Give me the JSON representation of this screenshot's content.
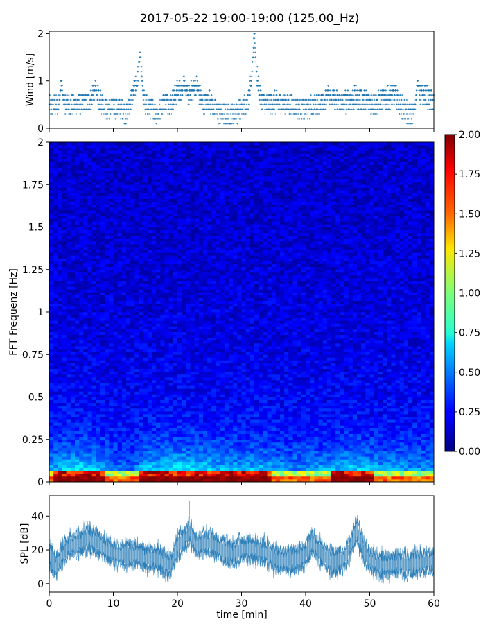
{
  "figure": {
    "title": "2017-05-22 19:00-19:00 (125.00_Hz)",
    "colors": {
      "series": "#1f77b4",
      "axis": "#000000",
      "background": "#ffffff",
      "lowfreq_band": "#a00000"
    }
  },
  "chart_data": [
    {
      "id": "wind",
      "type": "scatter",
      "xlabel": "",
      "ylabel": "Wind [m/s]",
      "xlim": [
        0,
        60
      ],
      "ylim": [
        0,
        2.05
      ],
      "ytick_labels": [
        "0",
        "1",
        "2"
      ],
      "yticks": [
        0,
        1,
        2
      ],
      "marker": "+",
      "profile_x": [
        0,
        2,
        4,
        6,
        7,
        9,
        11,
        12,
        13,
        14,
        15,
        17,
        18,
        19,
        20,
        21,
        22,
        23,
        24,
        25,
        26,
        28,
        30,
        31,
        32,
        33,
        34,
        35,
        37,
        39,
        40,
        42,
        44,
        46,
        48,
        50,
        51,
        52,
        54,
        55,
        56,
        57,
        58,
        60
      ],
      "profile_y": [
        0.45,
        0.5,
        0.5,
        0.55,
        0.75,
        0.4,
        0.45,
        0.3,
        0.7,
        1.2,
        0.5,
        0.3,
        0.6,
        0.5,
        0.8,
        0.7,
        0.75,
        0.9,
        0.5,
        0.6,
        0.35,
        0.3,
        0.4,
        0.55,
        1.5,
        0.6,
        0.5,
        0.55,
        0.5,
        0.45,
        0.4,
        0.5,
        0.6,
        0.55,
        0.65,
        0.55,
        0.5,
        0.6,
        0.7,
        0.45,
        0.3,
        0.35,
        0.75,
        0.55
      ],
      "peaks": [
        [
          1.9,
          1.0
        ],
        [
          14.2,
          1.6
        ],
        [
          32.0,
          2.0
        ],
        [
          21.0,
          1.1
        ],
        [
          57.5,
          1.0
        ],
        [
          7.2,
          0.9
        ],
        [
          43.5,
          0.8
        ]
      ]
    },
    {
      "id": "spectrogram",
      "type": "heatmap",
      "xlabel": "",
      "ylabel": "FFT Frequenz [Hz]",
      "xlim": [
        0,
        60
      ],
      "ylim": [
        0,
        2
      ],
      "ytick_labels": [
        "0",
        "0.25",
        "0.5",
        "0.75",
        "1",
        "1.25",
        "1.5",
        "1.75",
        "2"
      ],
      "yticks": [
        0,
        0.25,
        0.5,
        0.75,
        1,
        1.25,
        1.5,
        1.75,
        2
      ],
      "colormap": "jet",
      "colorbar": {
        "vmin": 0,
        "vmax": 2,
        "tick_labels": [
          "0.00",
          "0.25",
          "0.50",
          "0.75",
          "1.00",
          "1.25",
          "1.50",
          "1.75",
          "2.00"
        ],
        "ticks": [
          0,
          0.25,
          0.5,
          0.75,
          1.0,
          1.25,
          1.5,
          1.75,
          2.0
        ]
      },
      "activity_x": [
        0,
        3,
        5,
        8,
        10,
        13,
        15,
        18,
        20,
        23,
        25,
        28,
        30,
        33,
        36,
        39,
        41,
        44,
        47,
        50,
        52,
        55,
        58,
        60
      ],
      "activity": [
        0.55,
        0.8,
        0.85,
        0.7,
        0.35,
        0.3,
        0.75,
        0.8,
        0.9,
        0.85,
        0.75,
        0.6,
        0.65,
        0.7,
        0.55,
        0.4,
        0.55,
        0.6,
        0.75,
        0.7,
        0.5,
        0.55,
        0.5,
        0.5
      ]
    },
    {
      "id": "spl",
      "type": "line",
      "xlabel": "time [min]",
      "ylabel": "SPL [dB]",
      "xlim": [
        0,
        60
      ],
      "ylim": [
        -5,
        52
      ],
      "xticks": [
        0,
        10,
        20,
        30,
        40,
        50,
        60
      ],
      "xtick_labels": [
        "0",
        "10",
        "20",
        "30",
        "40",
        "50",
        "60"
      ],
      "yticks": [
        0,
        20,
        40
      ],
      "ytick_labels": [
        "0",
        "20",
        "40"
      ],
      "profile_x": [
        0,
        1,
        2,
        3,
        4,
        5,
        6,
        7,
        8,
        9,
        10,
        11,
        12,
        13,
        14,
        15,
        16,
        17,
        18,
        19,
        20,
        21,
        22,
        23,
        24,
        25,
        26,
        27,
        28,
        29,
        30,
        31,
        32,
        33,
        34,
        35,
        36,
        37,
        38,
        39,
        40,
        41,
        42,
        43,
        44,
        45,
        46,
        47,
        48,
        49,
        50,
        51,
        52,
        53,
        54,
        55,
        56,
        57,
        58,
        59,
        60
      ],
      "profile_y": [
        17,
        10,
        17,
        22,
        23,
        24,
        27,
        25,
        23,
        20,
        18,
        17,
        17,
        17,
        17,
        15,
        15,
        15,
        12,
        11,
        22,
        26,
        30,
        22,
        24,
        24,
        22,
        20,
        18,
        18,
        20,
        21,
        20,
        19,
        18,
        15,
        14,
        13,
        14,
        15,
        18,
        24,
        20,
        16,
        13,
        13,
        15,
        22,
        32,
        20,
        14,
        12,
        11,
        11,
        12,
        12,
        11,
        12,
        12,
        13,
        13
      ],
      "spike": [
        22,
        49
      ]
    }
  ]
}
